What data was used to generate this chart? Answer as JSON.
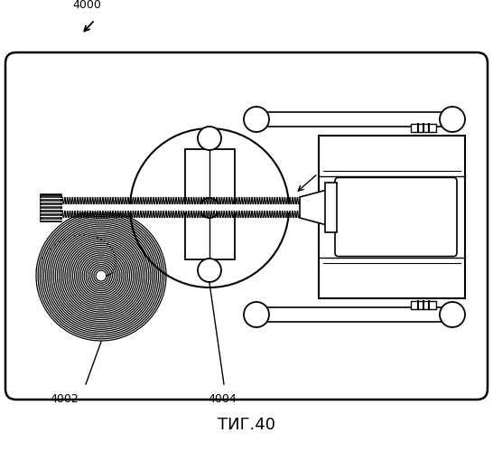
{
  "title": "ΤИГ.40",
  "label_4000": "4000",
  "label_4002": "4002",
  "label_4004": "4004",
  "bg_color": "#ffffff",
  "line_color": "#000000",
  "fig_width": 5.46,
  "fig_height": 5.0,
  "dpi": 100
}
